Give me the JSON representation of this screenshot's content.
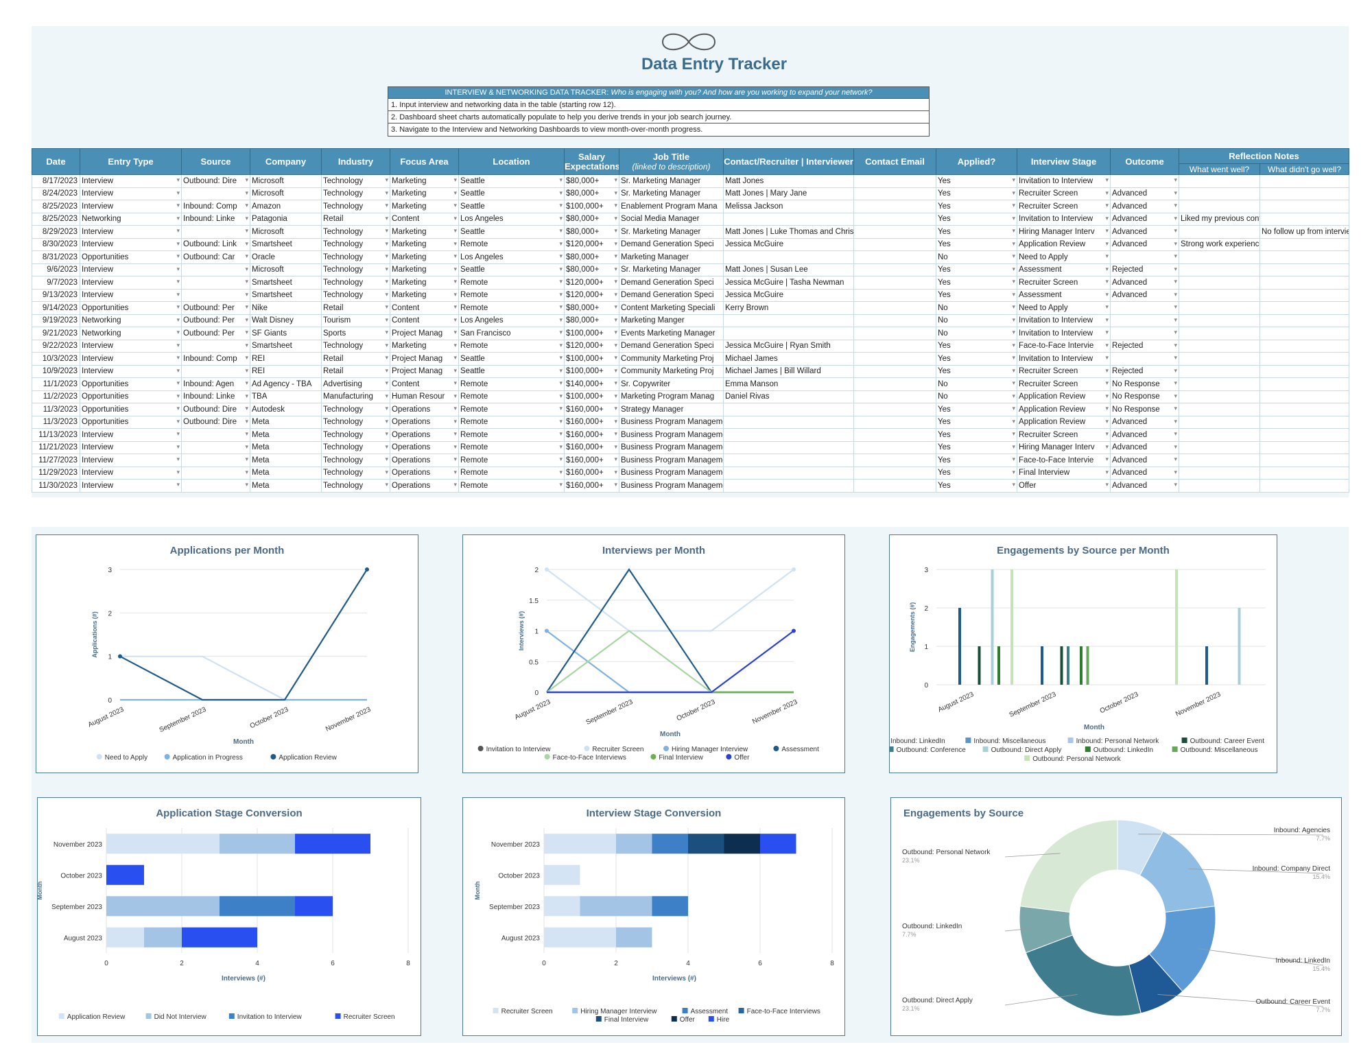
{
  "header": {
    "title": "Data Entry Tracker"
  },
  "instructions": {
    "banner_prefix": "INTERVIEW & NETWORKING DATA TRACKER:",
    "banner_question": "Who is engaging with you? And how are you working to expand your network?",
    "lines": [
      "1. Input interview and networking data in the table (starting row 12).",
      "2. Dashboard sheet charts automatically populate to help you derive trends in your job search journey.",
      "3. Navigate to the Interview and Networking Dashboards to view month-over-month progress."
    ]
  },
  "table": {
    "headers": {
      "date": "Date",
      "entry_type": "Entry Type",
      "source": "Source",
      "company": "Company",
      "industry": "Industry",
      "focus_area": "Focus Area",
      "location": "Location",
      "salary": "Salary Expectations",
      "job_title": "Job Title",
      "job_title_sub": "(linked to description)",
      "contact": "Contact/Recruiter | Interviewer",
      "email": "Contact Email",
      "applied": "Applied?",
      "stage": "Interview Stage",
      "outcome": "Outcome",
      "reflection": "Reflection Notes",
      "went_well": "What went well?",
      "didnt_go_well": "What didn't go well?"
    },
    "rows": [
      [
        "8/17/2023",
        "Interview",
        "Outbound: Dire",
        "Microsoft",
        "Technology",
        "Marketing",
        "Seattle",
        "$80,000+",
        "Sr. Marketing Manager",
        "Matt Jones",
        "",
        "Yes",
        "Invitation to Interview",
        "",
        "",
        ""
      ],
      [
        "8/24/2023",
        "Interview",
        "",
        "Microsoft",
        "Technology",
        "Marketing",
        "Seattle",
        "$80,000+",
        "Sr. Marketing Manager",
        "Matt Jones | Mary Jane",
        "",
        "Yes",
        "Recruiter Screen",
        "Advanced",
        "",
        ""
      ],
      [
        "8/25/2023",
        "Interview",
        "Inbound: Comp",
        "Amazon",
        "Technology",
        "Marketing",
        "Seattle",
        "$100,000+",
        "Enablement Program Mana",
        "Melissa Jackson",
        "",
        "Yes",
        "Recruiter Screen",
        "Advanced",
        "",
        ""
      ],
      [
        "8/25/2023",
        "Networking",
        "Inbound: Linke",
        "Patagonia",
        "Retail",
        "Content",
        "Los Angeles",
        "$80,000+",
        "Social Media Manager",
        "",
        "",
        "Yes",
        "Invitation to Interview",
        "Advanced",
        "Liked my previous content",
        ""
      ],
      [
        "8/29/2023",
        "Interview",
        "",
        "Microsoft",
        "Technology",
        "Marketing",
        "Seattle",
        "$80,000+",
        "Sr. Marketing Manager",
        "Matt Jones | Luke Thomas and Chris Carter",
        "",
        "Yes",
        "Hiring Manager Interv",
        "Advanced",
        "",
        "No follow up from intervie"
      ],
      [
        "8/30/2023",
        "Interview",
        "Outbound: Link",
        "Smartsheet",
        "Technology",
        "Marketing",
        "Remote",
        "$120,000+",
        "Demand Generation Speci",
        "Jessica McGuire",
        "",
        "Yes",
        "Application Review",
        "Advanced",
        "Strong work experience matches role requiren",
        ""
      ],
      [
        "8/31/2023",
        "Opportunities",
        "Outbound: Car",
        "Oracle",
        "Technology",
        "Marketing",
        "Los Angeles",
        "$80,000+",
        "Marketing Manager",
        "",
        "",
        "No",
        "Need to Apply",
        "",
        "",
        ""
      ],
      [
        "9/6/2023",
        "Interview",
        "",
        "Microsoft",
        "Technology",
        "Marketing",
        "Seattle",
        "$80,000+",
        "Sr. Marketing Manager",
        "Matt Jones | Susan Lee",
        "",
        "Yes",
        "Assessment",
        "Rejected",
        "",
        ""
      ],
      [
        "9/7/2023",
        "Interview",
        "",
        "Smartsheet",
        "Technology",
        "Marketing",
        "Remote",
        "$120,000+",
        "Demand Generation Speci",
        "Jessica McGuire | Tasha Newman",
        "",
        "Yes",
        "Recruiter Screen",
        "Advanced",
        "",
        ""
      ],
      [
        "9/13/2023",
        "Interview",
        "",
        "Smartsheet",
        "Technology",
        "Marketing",
        "Remote",
        "$120,000+",
        "Demand Generation Speci",
        "Jessica McGuire",
        "",
        "Yes",
        "Assessment",
        "Advanced",
        "",
        ""
      ],
      [
        "9/14/2023",
        "Opportunities",
        "Outbound: Per",
        "Nike",
        "Retail",
        "Content",
        "Remote",
        "$80,000+",
        "Content Marketing Speciali",
        "Kerry Brown",
        "",
        "No",
        "Need to Apply",
        "",
        "",
        ""
      ],
      [
        "9/19/2023",
        "Networking",
        "Outbound: Per",
        "Walt Disney",
        "Tourism",
        "Content",
        "Los Angeles",
        "$80,000+",
        "Marketing Manger",
        "",
        "",
        "No",
        "Invitation to Interview",
        "",
        "",
        ""
      ],
      [
        "9/21/2023",
        "Networking",
        "Outbound: Per",
        "SF Giants",
        "Sports",
        "Project Manag",
        "San Francisco",
        "$100,000+",
        "Events Marketing Manager",
        "",
        "",
        "No",
        "Invitation to Interview",
        "",
        "",
        ""
      ],
      [
        "9/22/2023",
        "Interview",
        "",
        "Smartsheet",
        "Technology",
        "Marketing",
        "Remote",
        "$120,000+",
        "Demand Generation Speci",
        "Jessica McGuire | Ryan Smith",
        "",
        "Yes",
        "Face-to-Face Intervie",
        "Rejected",
        "",
        ""
      ],
      [
        "10/3/2023",
        "Interview",
        "Inbound: Comp",
        "REI",
        "Retail",
        "Project Manag",
        "Seattle",
        "$100,000+",
        "Community Marketing Proj",
        "Michael James",
        "",
        "Yes",
        "Invitation to Interview",
        "",
        "",
        ""
      ],
      [
        "10/9/2023",
        "Interview",
        "",
        "REI",
        "Retail",
        "Project Manag",
        "Seattle",
        "$100,000+",
        "Community Marketing Proj",
        "Michael James | Bill Willard",
        "",
        "Yes",
        "Recruiter Screen",
        "Rejected",
        "",
        ""
      ],
      [
        "11/1/2023",
        "Opportunities",
        "Inbound: Agen",
        "Ad Agency - TBA",
        "Advertising",
        "Content",
        "Remote",
        "$140,000+",
        "Sr. Copywriter",
        "Emma Manson",
        "",
        "No",
        "Recruiter Screen",
        "No Response",
        "",
        ""
      ],
      [
        "11/2/2023",
        "Opportunities",
        "Inbound: Linke",
        "TBA",
        "Manufacturing",
        "Human Resour",
        "Remote",
        "$100,000+",
        "Marketing Program Manag",
        "Daniel Rivas",
        "",
        "No",
        "Application Review",
        "No Response",
        "",
        ""
      ],
      [
        "11/3/2023",
        "Opportunities",
        "Outbound: Dire",
        "Autodesk",
        "Technology",
        "Operations",
        "Remote",
        "$160,000+",
        "Strategy Manager",
        "",
        "",
        "Yes",
        "Application Review",
        "No Response",
        "",
        ""
      ],
      [
        "11/3/2023",
        "Opportunities",
        "Outbound: Dire",
        "Meta",
        "Technology",
        "Operations",
        "Remote",
        "$160,000+",
        "Business Program Management, Technical Operations",
        "",
        "",
        "Yes",
        "Application Review",
        "Advanced",
        "",
        ""
      ],
      [
        "11/13/2023",
        "Interview",
        "",
        "Meta",
        "Technology",
        "Operations",
        "Remote",
        "$160,000+",
        "Business Program Management, Technical Operations",
        "",
        "",
        "Yes",
        "Recruiter Screen",
        "Advanced",
        "",
        ""
      ],
      [
        "11/21/2023",
        "Interview",
        "",
        "Meta",
        "Technology",
        "Operations",
        "Remote",
        "$160,000+",
        "Business Program Management, Technical Operations",
        "",
        "",
        "Yes",
        "Hiring Manager Interv",
        "Advanced",
        "",
        ""
      ],
      [
        "11/27/2023",
        "Interview",
        "",
        "Meta",
        "Technology",
        "Operations",
        "Remote",
        "$160,000+",
        "Business Program Management, Technical Operations",
        "",
        "",
        "Yes",
        "Face-to-Face Intervie",
        "Advanced",
        "",
        ""
      ],
      [
        "11/29/2023",
        "Interview",
        "",
        "Meta",
        "Technology",
        "Operations",
        "Remote",
        "$160,000+",
        "Business Program Management, Technical Operations",
        "",
        "",
        "Yes",
        "Final Interview",
        "Advanced",
        "",
        ""
      ],
      [
        "11/30/2023",
        "Interview",
        "",
        "Meta",
        "Technology",
        "Operations",
        "Remote",
        "$160,000+",
        "Business Program Management, Technical Operations",
        "",
        "",
        "Yes",
        "Offer",
        "Advanced",
        "",
        ""
      ]
    ]
  },
  "chart_data": [
    {
      "id": "apps",
      "type": "line",
      "title": "Applications per Month",
      "xlabel": "Month",
      "ylabel": "Applications (#)",
      "categories": [
        "August 2023",
        "September 2023",
        "October 2023",
        "November 2023"
      ],
      "ylim": [
        0,
        3
      ],
      "yticks": [
        "0",
        "1",
        "2",
        "3"
      ],
      "series": [
        {
          "name": "Need to Apply",
          "color": "#cfe2f3",
          "values": [
            1,
            1,
            0,
            0
          ]
        },
        {
          "name": "Application in Progress",
          "color": "#7fb2e0",
          "values": [
            0,
            0,
            0,
            0
          ]
        },
        {
          "name": "Application Review",
          "color": "#1f5a8a",
          "values": [
            1,
            0,
            0,
            3
          ]
        }
      ]
    },
    {
      "id": "interviews",
      "type": "line",
      "title": "Interviews per Month",
      "xlabel": "Month",
      "ylabel": "Interviews (#)",
      "categories": [
        "August 2023",
        "September 2023",
        "October 2023",
        "November 2023"
      ],
      "ylim": [
        0,
        2
      ],
      "yticks": [
        "0",
        "0.5",
        "1",
        "1.5",
        "2"
      ],
      "series": [
        {
          "name": "Invitation to Interview",
          "color": "#555555",
          "values": [
            0,
            0,
            0,
            0
          ]
        },
        {
          "name": "Recruiter Screen",
          "color": "#cfe2f3",
          "values": [
            2,
            1,
            1,
            2
          ]
        },
        {
          "name": "Hiring Manager Interview",
          "color": "#7fb2e0",
          "values": [
            1,
            0,
            0,
            0
          ]
        },
        {
          "name": "Assessment",
          "color": "#1f5a8a",
          "values": [
            0,
            2,
            0,
            0
          ]
        },
        {
          "name": "Face-to-Face Interviews",
          "color": "#a8d5a2",
          "values": [
            0,
            1,
            0,
            0
          ]
        },
        {
          "name": "Final Interview",
          "color": "#6ab04c",
          "values": [
            0,
            0,
            0,
            0
          ]
        },
        {
          "name": "Offer",
          "color": "#2d40d6",
          "values": [
            0,
            0,
            0,
            1
          ]
        }
      ]
    },
    {
      "id": "eng_month",
      "type": "bar",
      "title": "Engagements by Source per Month",
      "xlabel": "Month",
      "ylabel": "Engagements (#)",
      "categories": [
        "August 2023",
        "September 2023",
        "October 2023",
        "November 2023"
      ],
      "ylim": [
        0,
        3
      ],
      "yticks": [
        "0",
        "1",
        "2",
        "3"
      ],
      "series": [
        {
          "name": "Inbound: LinkedIn",
          "color": "#1f5a8a",
          "values": [
            2,
            1,
            0,
            1
          ]
        },
        {
          "name": "Inbound: Miscellaneous",
          "color": "#5b95c8",
          "values": [
            0,
            0,
            0,
            0
          ]
        },
        {
          "name": "Inbound: Personal Network",
          "color": "#a9c8e8",
          "values": [
            0,
            0,
            0,
            0
          ]
        },
        {
          "name": "Outbound: Career Event",
          "color": "#1b4f3a",
          "values": [
            1,
            1,
            0,
            0
          ]
        },
        {
          "name": "Outbound: Conference",
          "color": "#3e7f8a",
          "values": [
            0,
            1,
            0,
            0
          ]
        },
        {
          "name": "Outbound: Direct Apply",
          "color": "#a9cfd8",
          "values": [
            3,
            0,
            0,
            2
          ]
        },
        {
          "name": "Outbound: LinkedIn",
          "color": "#2e7d32",
          "values": [
            1,
            1,
            0,
            0
          ]
        },
        {
          "name": "Outbound: Miscellaneous",
          "color": "#66a85a",
          "values": [
            0,
            1,
            0,
            0
          ]
        },
        {
          "name": "Outbound: Personal Network",
          "color": "#c5e3b8",
          "values": [
            3,
            0,
            3,
            0
          ]
        }
      ]
    },
    {
      "id": "app_conv",
      "type": "bar",
      "title": "Application Stage Conversion",
      "xlabel": "Interviews (#)",
      "ylabel": "Month",
      "categories": [
        "November 2023",
        "October 2023",
        "September 2023",
        "August 2023"
      ],
      "xlim": [
        0,
        8
      ],
      "xticks": [
        "0",
        "2",
        "4",
        "6",
        "8"
      ],
      "series": [
        {
          "name": "Application Review",
          "color": "#d4e4f4",
          "values": [
            3,
            0,
            0,
            1
          ]
        },
        {
          "name": "Did Not Interview",
          "color": "#a4c4e6",
          "values": [
            2,
            0,
            3,
            1
          ]
        },
        {
          "name": "Invitation to Interview",
          "color": "#3d80c8",
          "values": [
            0,
            0,
            2,
            0
          ]
        },
        {
          "name": "Recruiter Screen",
          "color": "#2a4ff0",
          "values": [
            2,
            1,
            1,
            2
          ]
        }
      ]
    },
    {
      "id": "int_conv",
      "type": "bar",
      "title": "Interview Stage Conversion",
      "xlabel": "Interviews (#)",
      "ylabel": "Month",
      "categories": [
        "November 2023",
        "October 2023",
        "September 2023",
        "August 2023"
      ],
      "xlim": [
        0,
        8
      ],
      "xticks": [
        "0",
        "2",
        "4",
        "6",
        "8"
      ],
      "series": [
        {
          "name": "Recruiter Screen",
          "color": "#d4e4f4",
          "values": [
            2,
            1,
            1,
            2
          ]
        },
        {
          "name": "Hiring Manager Interview",
          "color": "#a4c4e6",
          "values": [
            1,
            0,
            2,
            1
          ]
        },
        {
          "name": "Assessment",
          "color": "#3d80c8",
          "values": [
            1,
            0,
            1,
            0
          ]
        },
        {
          "name": "Face-to-Face Interviews",
          "color": "#2866a6",
          "values": [
            0,
            0,
            0,
            0
          ]
        },
        {
          "name": "Final Interview",
          "color": "#1b4f7e",
          "values": [
            1,
            0,
            0,
            0
          ]
        },
        {
          "name": "Offer",
          "color": "#0e2e4f",
          "values": [
            1,
            0,
            0,
            0
          ]
        },
        {
          "name": "Hire",
          "color": "#2a4ff0",
          "values": [
            1,
            0,
            0,
            0
          ]
        }
      ]
    },
    {
      "id": "eng_source",
      "type": "pie",
      "title": "Engagements by Source",
      "slices": [
        {
          "label": "Inbound: Agencies",
          "pct": "7.7%",
          "value": 7.7,
          "color": "#cfe2f3"
        },
        {
          "label": "Inbound: Company Direct",
          "pct": "15.4%",
          "value": 15.4,
          "color": "#8fbde4"
        },
        {
          "label": "Inbound: LinkedIn",
          "pct": "15.4%",
          "value": 15.4,
          "color": "#5c9ad6"
        },
        {
          "label": "Outbound: Career Event",
          "pct": "7.7%",
          "value": 7.7,
          "color": "#1f5a96"
        },
        {
          "label": "Outbound: Direct Apply",
          "pct": "23.1%",
          "value": 23.1,
          "color": "#3f7d8e"
        },
        {
          "label": "Outbound: LinkedIn",
          "pct": "7.7%",
          "value": 7.7,
          "color": "#7aa7aa"
        },
        {
          "label": "Outbound: Personal Network",
          "pct": "23.1%",
          "value": 23.1,
          "color": "#d7e9d4"
        }
      ]
    }
  ]
}
